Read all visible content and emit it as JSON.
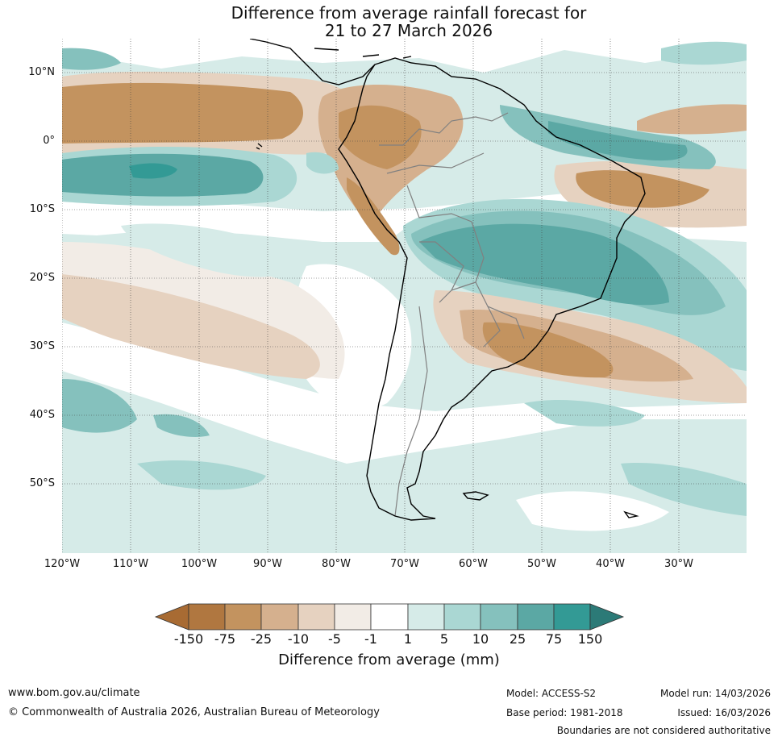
{
  "title": {
    "line1": "Difference from average rainfall forecast for",
    "line2": "21 to 27 March 2026"
  },
  "map": {
    "region": "South America",
    "lat_labels": [
      "10°N",
      "0°",
      "10°S",
      "20°S",
      "30°S",
      "40°S",
      "50°S"
    ],
    "lon_labels": [
      "120°W",
      "110°W",
      "100°W",
      "90°W",
      "80°W",
      "70°W",
      "60°W",
      "50°W",
      "40°W",
      "30°W"
    ],
    "gridlines": true,
    "features": {
      "coastline_color": "#000000",
      "borders_color": "#808080"
    }
  },
  "colorbar": {
    "label": "Difference from average (mm)",
    "ticks": [
      "-150",
      "-75",
      "-25",
      "-10",
      "-5",
      "-1",
      "1",
      "5",
      "10",
      "25",
      "75",
      "150"
    ],
    "colors": [
      "#a86b33",
      "#b07740",
      "#c3935f",
      "#d5b08e",
      "#e6d2c0",
      "#f2ece6",
      "#ffffff",
      "#d6ebe8",
      "#aad7d3",
      "#85c1bd",
      "#5ba8a4",
      "#339a95",
      "#2c7a77"
    ]
  },
  "footer": {
    "url": "www.bom.gov.au/climate",
    "copyright": "© Commonwealth of Australia 2026, Australian Bureau of Meteorology",
    "model": "Model: ACCESS-S2",
    "model_run": "Model run: 14/03/2026",
    "base_period": "Base period: 1981-2018",
    "issued": "Issued: 16/03/2026",
    "disclaimer": "Boundaries are not considered authoritative"
  }
}
